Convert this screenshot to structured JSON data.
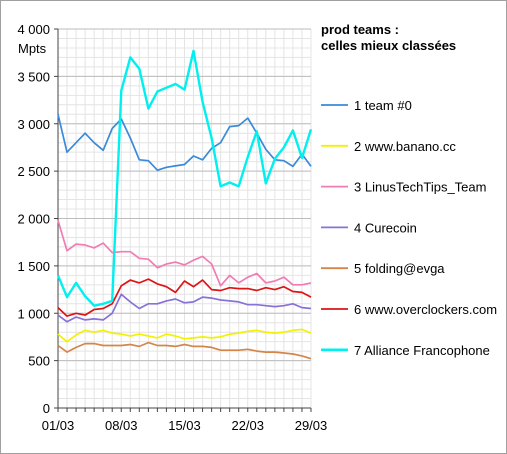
{
  "chart_data": {
    "type": "line",
    "title_lines": [
      "prod teams :",
      "celles mieux classées"
    ],
    "ylabel": "Mpts",
    "xlabel": "",
    "ylim": [
      0,
      4000
    ],
    "y_ticks": [
      0,
      500,
      1000,
      1500,
      2000,
      2500,
      3000,
      3500,
      4000
    ],
    "y_tick_labels": [
      "0",
      "500",
      "1 000",
      "1 500",
      "2 000",
      "2 500",
      "3 000",
      "3 500",
      "4 000"
    ],
    "x_ticks": [
      1,
      8,
      15,
      22,
      29
    ],
    "x_tick_labels": [
      "01/03",
      "08/03",
      "15/03",
      "22/03",
      "29/03"
    ],
    "x": [
      1,
      2,
      3,
      4,
      5,
      6,
      7,
      8,
      9,
      10,
      11,
      12,
      13,
      14,
      15,
      16,
      17,
      18,
      19,
      20,
      21,
      22,
      23,
      24,
      25,
      26,
      27,
      28,
      29
    ],
    "grid": true,
    "legend_position": "right",
    "series": [
      {
        "name": "1 team #0",
        "color": "#3a8ad8",
        "values": [
          3100,
          2700,
          2800,
          2900,
          2800,
          2720,
          2950,
          3050,
          2850,
          2620,
          2610,
          2510,
          2540,
          2555,
          2570,
          2660,
          2620,
          2740,
          2800,
          2970,
          2980,
          3060,
          2900,
          2730,
          2620,
          2610,
          2550,
          2680,
          2550
        ]
      },
      {
        "name": "2 www.banano.cc",
        "color": "#f2f200",
        "values": [
          780,
          700,
          770,
          820,
          800,
          820,
          790,
          780,
          760,
          780,
          760,
          740,
          780,
          760,
          730,
          740,
          750,
          740,
          750,
          780,
          790,
          810,
          820,
          800,
          790,
          800,
          820,
          830,
          790
        ]
      },
      {
        "name": "3 LinusTechTips_Team",
        "color": "#f07cb4",
        "values": [
          1980,
          1660,
          1730,
          1720,
          1690,
          1740,
          1640,
          1650,
          1650,
          1580,
          1570,
          1480,
          1520,
          1540,
          1510,
          1560,
          1600,
          1520,
          1290,
          1400,
          1320,
          1380,
          1420,
          1320,
          1340,
          1380,
          1300,
          1300,
          1320
        ]
      },
      {
        "name": "4 Curecoin",
        "color": "#8872d8",
        "values": [
          980,
          910,
          960,
          930,
          940,
          930,
          1000,
          1200,
          1120,
          1050,
          1100,
          1100,
          1130,
          1150,
          1110,
          1120,
          1170,
          1160,
          1140,
          1130,
          1120,
          1090,
          1090,
          1080,
          1070,
          1080,
          1100,
          1060,
          1050
        ]
      },
      {
        "name": "5 folding@evga",
        "color": "#d4864a",
        "values": [
          660,
          590,
          640,
          680,
          680,
          660,
          660,
          660,
          670,
          650,
          690,
          660,
          660,
          650,
          670,
          650,
          650,
          640,
          610,
          610,
          610,
          620,
          600,
          590,
          590,
          580,
          570,
          550,
          520
        ]
      },
      {
        "name": "6 www.overclockers.com",
        "color": "#dc1414",
        "values": [
          1060,
          970,
          1000,
          980,
          1040,
          1050,
          1100,
          1290,
          1350,
          1320,
          1360,
          1310,
          1280,
          1220,
          1340,
          1280,
          1350,
          1250,
          1240,
          1270,
          1260,
          1260,
          1240,
          1270,
          1250,
          1280,
          1230,
          1220,
          1170
        ]
      },
      {
        "name": "7 Alliance Francophone",
        "color": "#00f0f0",
        "values": [
          1400,
          1170,
          1320,
          1180,
          1080,
          1100,
          1130,
          3350,
          3700,
          3580,
          3160,
          3340,
          3380,
          3420,
          3360,
          3770,
          3230,
          2850,
          2340,
          2380,
          2340,
          2650,
          2920,
          2370,
          2630,
          2750,
          2930,
          2640,
          2940
        ]
      }
    ]
  }
}
